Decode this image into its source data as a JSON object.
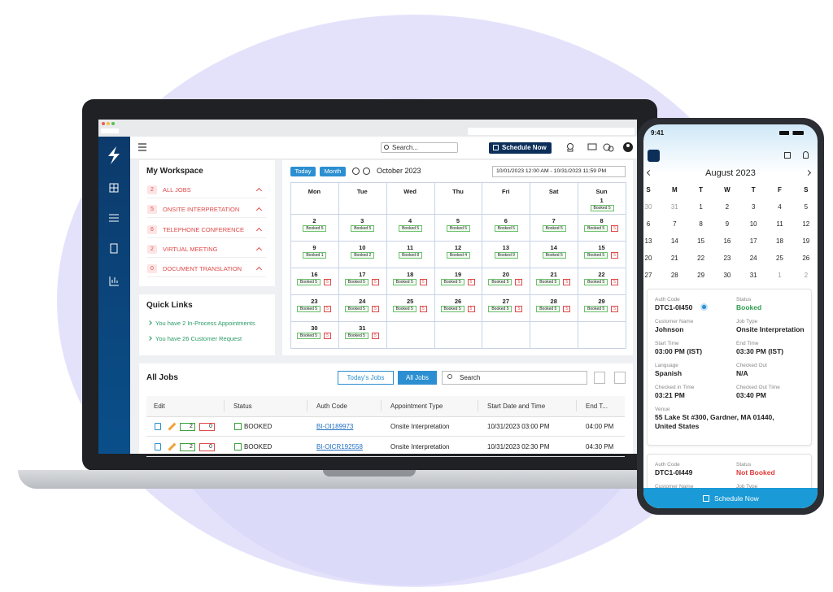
{
  "app": {
    "search": "Search...",
    "schedule_button": "Schedule Now",
    "workspace": {
      "title": "My Workspace",
      "items": [
        {
          "count": "2",
          "label": "ALL JOBS"
        },
        {
          "count": "5",
          "label": "ONSITE INTERPRETATION"
        },
        {
          "count": "6",
          "label": "TELEPHONE CONFERENCE"
        },
        {
          "count": "2",
          "label": "VIRTUAL MEETING"
        },
        {
          "count": "0",
          "label": "DOCUMENT TRANSLATION"
        }
      ]
    },
    "quick_links": {
      "title": "Quick Links",
      "links": [
        "You have 2 In-Process Appointments",
        "You have 26 Customer Request"
      ]
    },
    "calendar": {
      "today": "Today",
      "month": "Month",
      "title": "October 2023",
      "range": "10/01/2023 12:00 AM - 10/31/2023 11:59 PM",
      "weekdays": [
        "Mon",
        "Tue",
        "Wed",
        "Thu",
        "Fri",
        "Sat",
        "Sun"
      ],
      "weeks": [
        [
          null,
          null,
          null,
          null,
          null,
          null,
          {
            "day": "1",
            "booked": "Booked 5"
          }
        ],
        [
          {
            "day": "2",
            "booked": "Booked 5"
          },
          {
            "day": "3",
            "booked": "Booked 5"
          },
          {
            "day": "4",
            "booked": "Booked 5"
          },
          {
            "day": "5",
            "booked": "Booked 5"
          },
          {
            "day": "6",
            "booked": "Booked 5"
          },
          {
            "day": "7",
            "booked": "Booked 5"
          },
          {
            "day": "8",
            "booked": "Booked 5",
            "pending": "5"
          }
        ],
        [
          {
            "day": "9",
            "booked": "Booked 1"
          },
          {
            "day": "10",
            "booked": "Booked 2"
          },
          {
            "day": "11",
            "booked": "Booked 8"
          },
          {
            "day": "12",
            "booked": "Booked 4"
          },
          {
            "day": "13",
            "booked": "Booked 9"
          },
          {
            "day": "14",
            "booked": "Booked 5"
          },
          {
            "day": "15",
            "booked": "Booked 5",
            "pending": "5"
          }
        ],
        [
          {
            "day": "16",
            "booked": "Booked 5",
            "pending": "5"
          },
          {
            "day": "17",
            "booked": "Booked 5",
            "pending": "5"
          },
          {
            "day": "18",
            "booked": "Booked 5",
            "pending": "5"
          },
          {
            "day": "19",
            "booked": "Booked 5",
            "pending": "5"
          },
          {
            "day": "20",
            "booked": "Booked 5",
            "pending": "5"
          },
          {
            "day": "21",
            "booked": "Booked 5",
            "pending": "5"
          },
          {
            "day": "22",
            "booked": "Booked 5",
            "pending": "5"
          }
        ],
        [
          {
            "day": "23",
            "booked": "Booked 5",
            "pending": "5"
          },
          {
            "day": "24",
            "booked": "Booked 5",
            "pending": "5"
          },
          {
            "day": "25",
            "booked": "Booked 5",
            "pending": "5"
          },
          {
            "day": "26",
            "booked": "Booked 5",
            "pending": "5"
          },
          {
            "day": "27",
            "booked": "Booked 5",
            "pending": "5"
          },
          {
            "day": "28",
            "booked": "Booked 5",
            "pending": "5"
          },
          {
            "day": "29",
            "booked": "Booked 5",
            "pending": "5"
          }
        ],
        [
          {
            "day": "30",
            "booked": "Booked 5",
            "pending": "5"
          },
          {
            "day": "31",
            "booked": "Booked 5",
            "pending": "5"
          },
          null,
          null,
          null,
          null,
          null
        ]
      ]
    },
    "jobs": {
      "title": "All Jobs",
      "tabs": [
        "Today's Jobs",
        "All Jobs"
      ],
      "search": "Search",
      "columns": [
        "Edit",
        "Status",
        "Auth Code",
        "Appointment Type",
        "Start Date and Time",
        "End T..."
      ],
      "rows": [
        {
          "sms": "2",
          "email": "0",
          "status": "BOOKED",
          "auth_code": "BI-OI189973",
          "type": "Onsite Interpretation",
          "start": "10/31/2023 03:00 PM",
          "end": "04:00 PM"
        },
        {
          "sms": "2",
          "email": "0",
          "status": "BOOKED",
          "auth_code": "BI-OICR192558",
          "type": "Onsite Interpretation",
          "start": "10/31/2023 02:30 PM",
          "end": "04:30 PM"
        }
      ]
    }
  },
  "phone": {
    "time": "9:41",
    "month": "August 2023",
    "weekdays": [
      "S",
      "M",
      "T",
      "W",
      "T",
      "F",
      "S"
    ],
    "days": [
      "30",
      "31",
      "1",
      "2",
      "3",
      "4",
      "5",
      "6",
      "7",
      "8",
      "9",
      "10",
      "11",
      "12",
      "13",
      "14",
      "15",
      "16",
      "17",
      "18",
      "19",
      "20",
      "21",
      "22",
      "23",
      "24",
      "25",
      "26",
      "27",
      "28",
      "29",
      "30",
      "31",
      "1",
      "2"
    ],
    "cards": [
      {
        "fields": [
          {
            "label": "Auth Code",
            "value": "DTC1-0I450"
          },
          {
            "label": "Status",
            "value": "Booked",
            "color": "#2e9e4f"
          },
          {
            "label": "Customer Name",
            "value": "Johnson"
          },
          {
            "label": "Job Type",
            "value": "Onsite Interpretation"
          },
          {
            "label": "Start Time",
            "value": "03:00 PM (IST)"
          },
          {
            "label": "End Time",
            "value": "03:30 PM (IST)"
          },
          {
            "label": "Language",
            "value": "Spanish"
          },
          {
            "label": "Checked Out",
            "value": "N/A"
          },
          {
            "label": "Checked in Time",
            "value": "03:21 PM"
          },
          {
            "label": "Checked Out Time",
            "value": "03:40 PM"
          }
        ],
        "venue": {
          "label": "Venue",
          "value": "55 Lake St #300, Gardner, MA 01440, United States"
        }
      },
      {
        "fields": [
          {
            "label": "Auth Code",
            "value": "DTC1-0I449"
          },
          {
            "label": "Status",
            "value": "Not Booked",
            "color": "#e03a3a"
          },
          {
            "label": "Customer Name"
          },
          {
            "label": "Job Type"
          }
        ]
      }
    ],
    "button": "Schedule Now"
  }
}
